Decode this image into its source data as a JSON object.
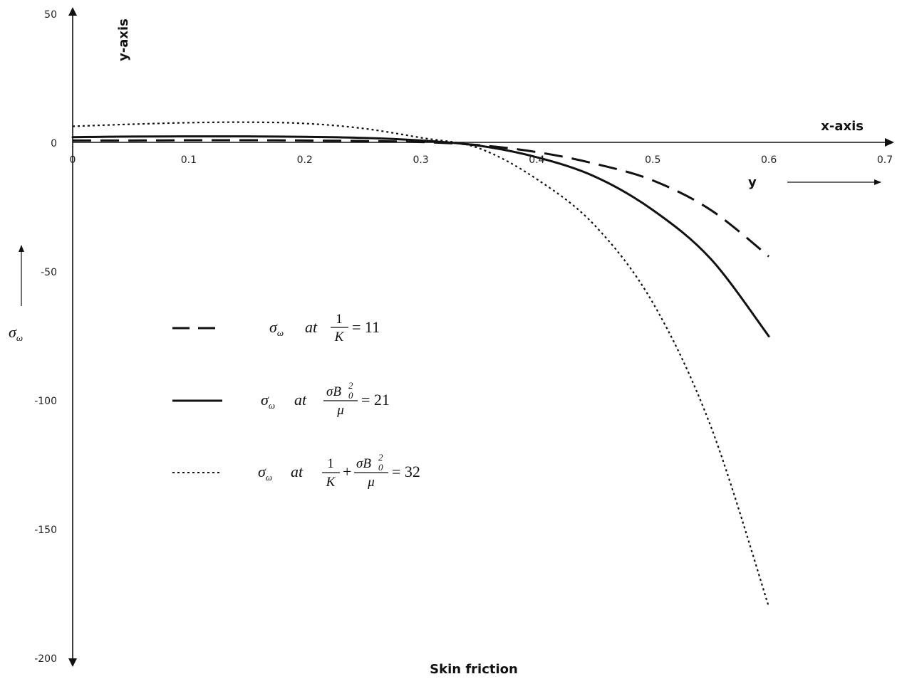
{
  "chart_data": {
    "type": "line",
    "title": "",
    "xlabel": "x-axis",
    "ylabel": "y-axis",
    "x_var": "y",
    "y_var": "σω",
    "caption": "Skin friction",
    "xlim": [
      0,
      0.7
    ],
    "ylim": [
      -200,
      50
    ],
    "x_ticks": [
      "0",
      "0.1",
      "0.2",
      "0.3",
      "0.4",
      "0.5",
      "0.6",
      "0.7"
    ],
    "y_ticks": [
      "50",
      "0",
      "-50",
      "-100",
      "-150",
      "-200"
    ],
    "grid": false,
    "legend_position": "left-center",
    "x": [
      0,
      0.05,
      0.1,
      0.15,
      0.2,
      0.25,
      0.3,
      0.35,
      0.4,
      0.45,
      0.5,
      0.55,
      0.6
    ],
    "series": [
      {
        "name": "σω at 1/K = 11",
        "legend": {
          "prefix": "σ",
          "sub": "ω",
          "at": "at",
          "parts": [
            "1",
            "K"
          ],
          "rhs": "= 11"
        },
        "style": "dashed",
        "color": "#111111",
        "values": [
          1.0,
          1.0,
          1.1,
          1.1,
          1.0,
          0.8,
          0.4,
          -0.8,
          -3.5,
          -8.0,
          -14.5,
          -26.0,
          -44.0
        ]
      },
      {
        "name": "σω at σB0²/μ = 21",
        "legend": {
          "prefix": "σ",
          "sub": "ω",
          "at": "at",
          "parts": [
            "σB",
            "μ"
          ],
          "rhs": "= 21"
        },
        "style": "solid",
        "color": "#111111",
        "values": [
          2.3,
          2.5,
          2.6,
          2.6,
          2.4,
          2.0,
          1.0,
          -1.0,
          -5.5,
          -13.0,
          -26.0,
          -45.0,
          -75.0
        ]
      },
      {
        "name": "σω at 1/K + σB0²/μ = 32",
        "legend": {
          "prefix": "σ",
          "sub": "ω",
          "at": "at",
          "parts": [
            "1",
            "K",
            "σB",
            "μ"
          ],
          "rhs": "= 32"
        },
        "style": "dotted",
        "color": "#111111",
        "values": [
          6.5,
          7.3,
          7.9,
          8.1,
          7.6,
          5.7,
          2.1,
          -2.0,
          -14.0,
          -32.0,
          -62.0,
          -110.0,
          -180.0
        ]
      }
    ]
  }
}
